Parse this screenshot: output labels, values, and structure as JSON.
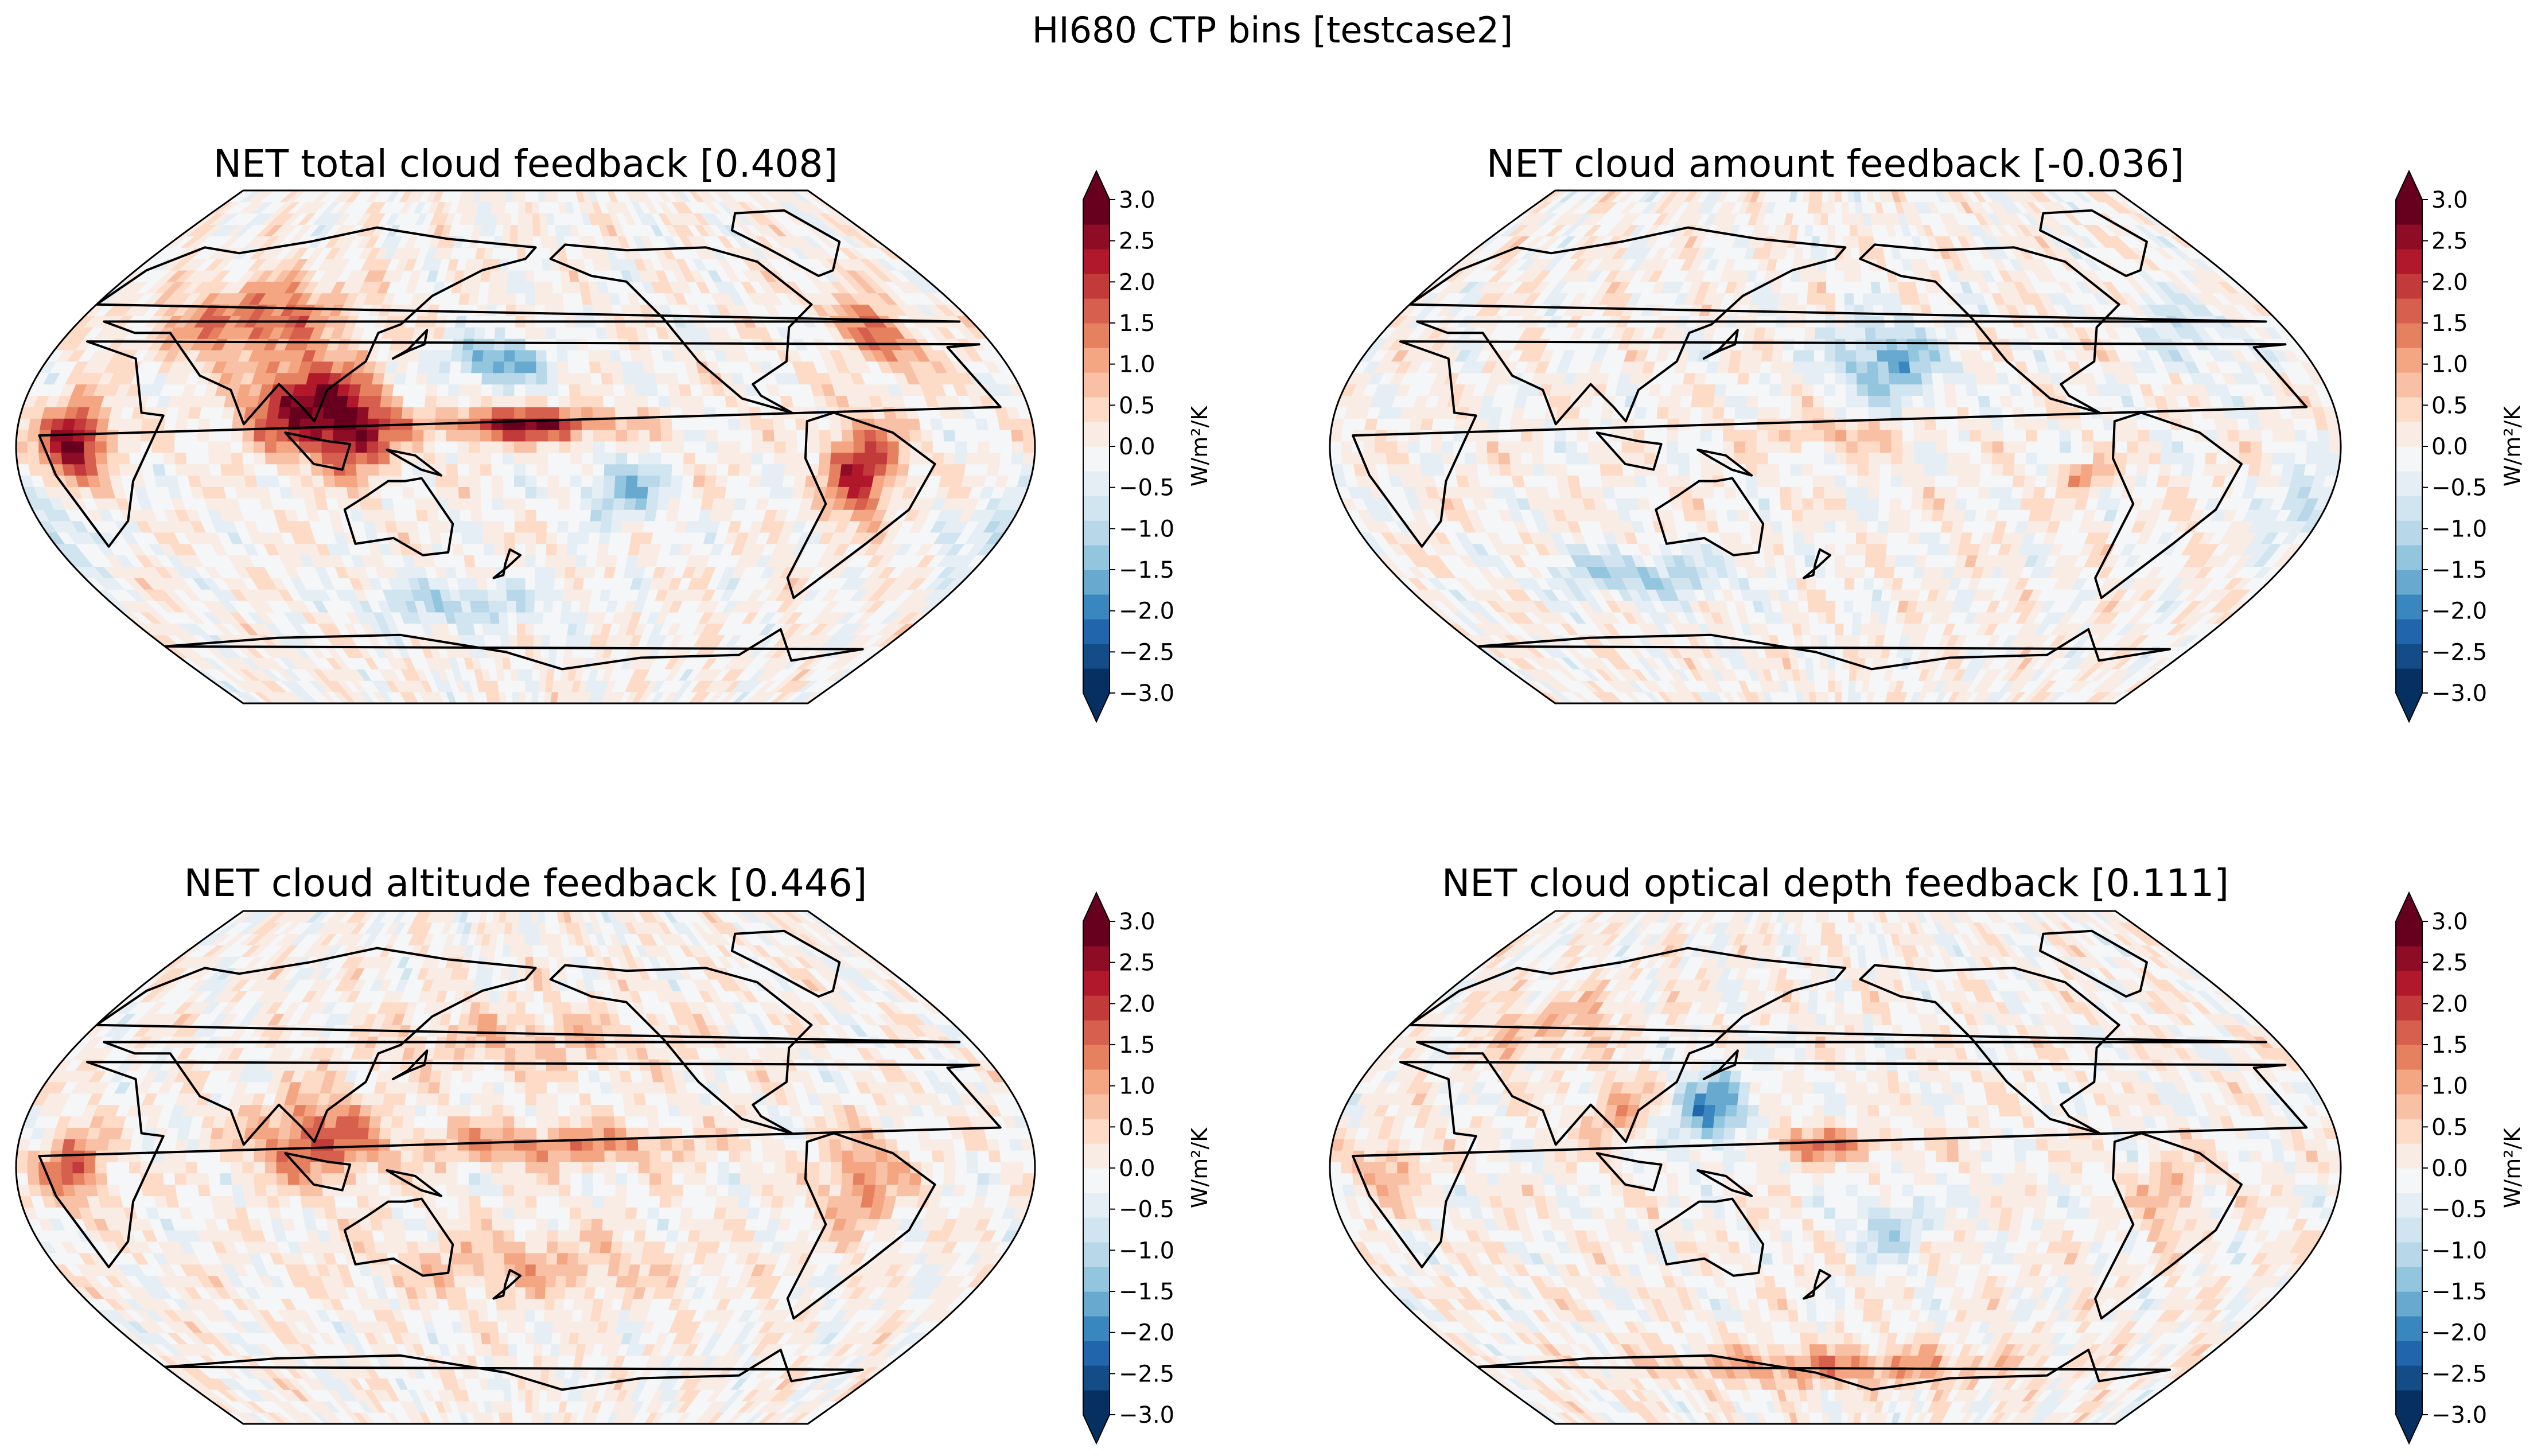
{
  "figure_title": "HI680 CTP bins [testcase2]",
  "colormap": {
    "name": "RdBu_r",
    "colors": [
      "#053061",
      "#134c87",
      "#2166ac",
      "#3a87bf",
      "#67a9cf",
      "#92c5de",
      "#b8d8e9",
      "#d1e5f0",
      "#e4eef4",
      "#f4f6f7",
      "#f9ece4",
      "#fddbc7",
      "#f8c1a6",
      "#f4a582",
      "#e6815f",
      "#d6604d",
      "#c23a3a",
      "#b2182b",
      "#8e0c25",
      "#67001f"
    ],
    "under_color": "#053061",
    "over_color": "#67001f"
  },
  "chart_data": [
    {
      "type": "heatmap",
      "title": "NET total cloud feedback [0.408]",
      "projection": "Robinson, centered on Pacific",
      "colorbar": {
        "label": "W/m²/K",
        "range": [
          -3.0,
          3.0
        ],
        "extend": "both",
        "ticks": [
          "3.0",
          "2.5",
          "2.0",
          "1.5",
          "1.0",
          "0.5",
          "0.0",
          "−0.5",
          "−1.0",
          "−1.5",
          "−2.0",
          "−2.5",
          "−3.0"
        ]
      },
      "field_seed": 1,
      "field_anomalies": [
        {
          "lon": 20,
          "lat": 2,
          "value": 3.0,
          "sx": 8,
          "sy": 9
        },
        {
          "lon": 100,
          "lat": 15,
          "value": 2.6,
          "sx": 14,
          "sy": 11
        },
        {
          "lon": 120,
          "lat": 5,
          "value": 2.3,
          "sx": 10,
          "sy": 10
        },
        {
          "lon": 180,
          "lat": 8,
          "value": 2.6,
          "sx": 22,
          "sy": 4
        },
        {
          "lon": 300,
          "lat": -8,
          "value": 2.3,
          "sx": 9,
          "sy": 12
        },
        {
          "lon": 70,
          "lat": 45,
          "value": 1.6,
          "sx": 25,
          "sy": 10
        },
        {
          "lon": 170,
          "lat": 30,
          "value": -1.6,
          "sx": 14,
          "sy": 6
        },
        {
          "lon": 215,
          "lat": -15,
          "value": -1.3,
          "sx": 10,
          "sy": 8
        },
        {
          "lon": 0,
          "lat": -30,
          "value": -1.2,
          "sx": 10,
          "sy": 8
        },
        {
          "lon": 320,
          "lat": 40,
          "value": 1.5,
          "sx": 10,
          "sy": 10
        },
        {
          "lon": 150,
          "lat": -55,
          "value": -1.0,
          "sx": 30,
          "sy": 6
        }
      ]
    },
    {
      "type": "heatmap",
      "title": "NET cloud amount feedback [-0.036]",
      "projection": "Robinson, centered on Pacific",
      "colorbar": {
        "label": "W/m²/K",
        "range": [
          -3.0,
          3.0
        ],
        "extend": "both",
        "ticks": [
          "3.0",
          "2.5",
          "2.0",
          "1.5",
          "1.0",
          "0.5",
          "0.0",
          "−0.5",
          "−1.0",
          "−1.5",
          "−2.0",
          "−2.5",
          "−3.0"
        ]
      },
      "field_seed": 2,
      "field_anomalies": [
        {
          "lon": 200,
          "lat": 30,
          "value": -1.6,
          "sx": 15,
          "sy": 10
        },
        {
          "lon": 100,
          "lat": -45,
          "value": -1.2,
          "sx": 25,
          "sy": 6
        },
        {
          "lon": 180,
          "lat": 5,
          "value": 0.8,
          "sx": 18,
          "sy": 4
        },
        {
          "lon": 270,
          "lat": -10,
          "value": 1.4,
          "sx": 6,
          "sy": 3
        },
        {
          "lon": 350,
          "lat": -20,
          "value": -1.1,
          "sx": 8,
          "sy": 8
        },
        {
          "lon": 320,
          "lat": 40,
          "value": -0.7,
          "sx": 15,
          "sy": 10
        }
      ]
    },
    {
      "type": "heatmap",
      "title": "NET cloud altitude feedback [0.446]",
      "projection": "Robinson, centered on Pacific",
      "colorbar": {
        "label": "W/m²/K",
        "range": [
          -3.0,
          3.0
        ],
        "extend": "both",
        "ticks": [
          "3.0",
          "2.5",
          "2.0",
          "1.5",
          "1.0",
          "0.5",
          "0.0",
          "−0.5",
          "−1.0",
          "−1.5",
          "−2.0",
          "−2.5",
          "−3.0"
        ]
      },
      "field_seed": 3,
      "field_anomalies": [
        {
          "lon": 20,
          "lat": 0,
          "value": 1.8,
          "sx": 8,
          "sy": 9
        },
        {
          "lon": 105,
          "lat": 10,
          "value": 1.7,
          "sx": 16,
          "sy": 11
        },
        {
          "lon": 190,
          "lat": 8,
          "value": 1.3,
          "sx": 35,
          "sy": 5
        },
        {
          "lon": 300,
          "lat": -5,
          "value": 1.3,
          "sx": 10,
          "sy": 12
        },
        {
          "lon": 180,
          "lat": -35,
          "value": 0.8,
          "sx": 40,
          "sy": 8
        },
        {
          "lon": 180,
          "lat": 45,
          "value": 0.7,
          "sx": 40,
          "sy": 8
        }
      ]
    },
    {
      "type": "heatmap",
      "title": "NET cloud optical depth feedback [0.111]",
      "projection": "Robinson, centered on Pacific",
      "colorbar": {
        "label": "W/m²/K",
        "range": [
          -3.0,
          3.0
        ],
        "extend": "both",
        "ticks": [
          "3.0",
          "2.5",
          "2.0",
          "1.5",
          "1.0",
          "0.5",
          "0.0",
          "−0.5",
          "−1.0",
          "−1.5",
          "−2.0",
          "−2.5",
          "−3.0"
        ]
      },
      "field_seed": 4,
      "field_anomalies": [
        {
          "lon": 135,
          "lat": 20,
          "value": -1.8,
          "sx": 10,
          "sy": 10
        },
        {
          "lon": 175,
          "lat": 8,
          "value": 1.3,
          "sx": 18,
          "sy": 4
        },
        {
          "lon": 20,
          "lat": 0,
          "value": 1.0,
          "sx": 8,
          "sy": 8
        },
        {
          "lon": 100,
          "lat": 20,
          "value": 1.0,
          "sx": 8,
          "sy": 8
        },
        {
          "lon": 300,
          "lat": -10,
          "value": 0.9,
          "sx": 8,
          "sy": 10
        },
        {
          "lon": 200,
          "lat": -20,
          "value": -1.0,
          "sx": 10,
          "sy": 8
        },
        {
          "lon": 180,
          "lat": -70,
          "value": 1.2,
          "sx": 60,
          "sy": 5
        },
        {
          "lon": 60,
          "lat": 50,
          "value": 0.8,
          "sx": 20,
          "sy": 8
        }
      ]
    }
  ]
}
